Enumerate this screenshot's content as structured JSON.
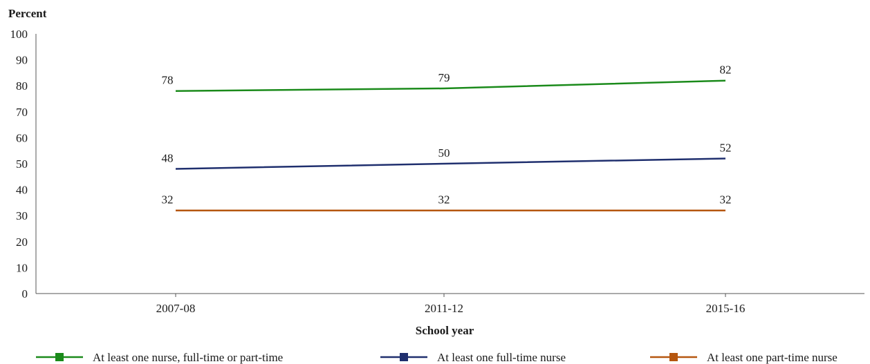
{
  "chart_data": {
    "type": "line",
    "ylabel": "Percent",
    "xlabel": "School year",
    "categories": [
      "2007-08",
      "2011-12",
      "2015-16"
    ],
    "ylim": [
      0,
      100
    ],
    "yticks": [
      0,
      10,
      20,
      30,
      40,
      50,
      60,
      70,
      80,
      90,
      100
    ],
    "grid": false,
    "legend_position": "bottom",
    "series": [
      {
        "name": "At least one nurse, full-time or part-time",
        "values": [
          78,
          79,
          82
        ],
        "labels": [
          "78",
          "79",
          "82"
        ],
        "color": "#1a8a1a"
      },
      {
        "name": "At least one full-time nurse",
        "values": [
          48,
          50,
          52
        ],
        "labels": [
          "48",
          "50",
          "52"
        ],
        "color": "#1f2f6e"
      },
      {
        "name": "At least one part-time nurse",
        "values": [
          32,
          32,
          32
        ],
        "labels": [
          "32",
          "32",
          "32"
        ],
        "color": "#b5560f"
      }
    ]
  }
}
